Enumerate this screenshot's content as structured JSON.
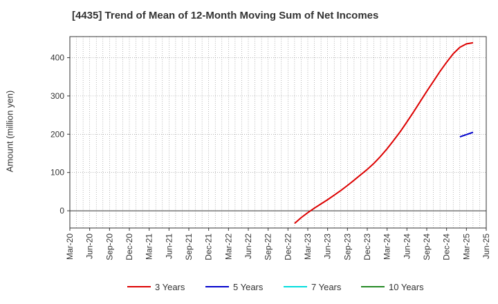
{
  "chart_data": {
    "type": "line",
    "title": "[4435]  Trend of Mean of 12-Month Moving Sum of Net Incomes",
    "ylabel": "Amount (million yen)",
    "xlabel": "",
    "ylim": [
      -45,
      455
    ],
    "yticks": [
      0,
      100,
      200,
      300,
      400
    ],
    "xticks": [
      "Mar-20",
      "Jun-20",
      "Sep-20",
      "Dec-20",
      "Mar-21",
      "Jun-21",
      "Sep-21",
      "Dec-21",
      "Mar-22",
      "Jun-22",
      "Sep-22",
      "Dec-22",
      "Mar-23",
      "Jun-23",
      "Sep-23",
      "Dec-23",
      "Mar-24",
      "Jun-24",
      "Sep-24",
      "Dec-24",
      "Mar-25",
      "Jun-25"
    ],
    "grid": true,
    "legend_position": "bottom",
    "series": [
      {
        "name": "3 Years",
        "color": "#dd0000",
        "points": [
          [
            "Jan-23",
            -33
          ],
          [
            "Feb-23",
            -18
          ],
          [
            "Mar-23",
            -5
          ],
          [
            "Apr-23",
            7
          ],
          [
            "May-23",
            18
          ],
          [
            "Jun-23",
            29
          ],
          [
            "Jul-23",
            41
          ],
          [
            "Aug-23",
            53
          ],
          [
            "Sep-23",
            66
          ],
          [
            "Oct-23",
            80
          ],
          [
            "Nov-23",
            94
          ],
          [
            "Dec-23",
            108
          ],
          [
            "Jan-24",
            124
          ],
          [
            "Feb-24",
            142
          ],
          [
            "Mar-24",
            162
          ],
          [
            "Apr-24",
            184
          ],
          [
            "May-24",
            207
          ],
          [
            "Jun-24",
            232
          ],
          [
            "Jul-24",
            258
          ],
          [
            "Aug-24",
            285
          ],
          [
            "Sep-24",
            312
          ],
          [
            "Oct-24",
            338
          ],
          [
            "Nov-24",
            364
          ],
          [
            "Dec-24",
            388
          ],
          [
            "Jan-25",
            410
          ],
          [
            "Feb-25",
            427
          ],
          [
            "Mar-25",
            436
          ],
          [
            "Apr-25",
            439
          ]
        ]
      },
      {
        "name": "5 Years",
        "color": "#0000cc",
        "points": [
          [
            "Feb-25",
            193
          ],
          [
            "Mar-25",
            199
          ],
          [
            "Apr-25",
            205
          ]
        ]
      },
      {
        "name": "7 Years",
        "color": "#00dddd",
        "points": []
      },
      {
        "name": "10 Years",
        "color": "#228822",
        "points": []
      }
    ]
  }
}
